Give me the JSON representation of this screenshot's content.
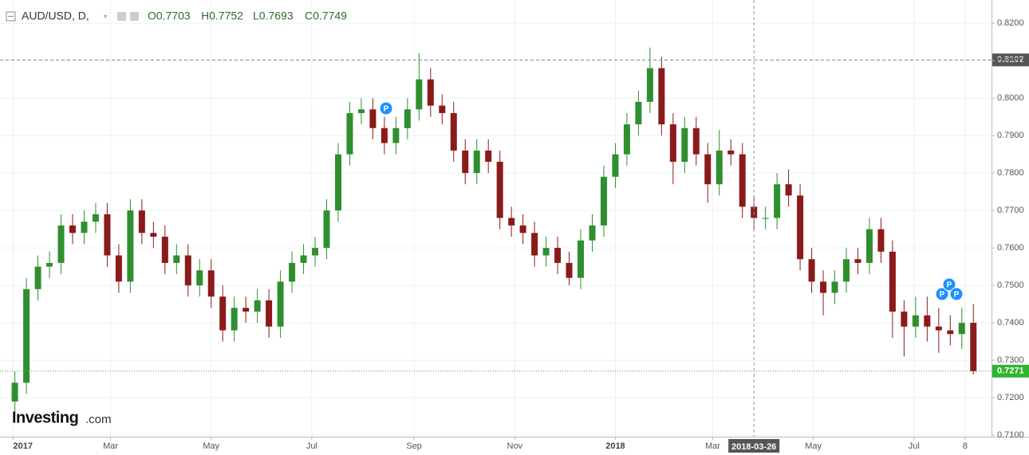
{
  "chart_data": {
    "type": "candlestick",
    "header": {
      "symbol": "AUD/USD, D,",
      "ohlc": [
        "O0.7703",
        "H0.7752",
        "L0.7693",
        "C0.7749"
      ]
    },
    "logo": {
      "brand": "Investing",
      "suffix": ".com"
    },
    "event_markers": [
      "P",
      "P",
      "P",
      "P"
    ],
    "x": [
      "2017-01-02",
      "2017-01-09",
      "2017-01-16",
      "2017-01-23",
      "2017-01-30",
      "2017-02-06",
      "2017-02-13",
      "2017-02-20",
      "2017-02-27",
      "2017-03-06",
      "2017-03-13",
      "2017-03-20",
      "2017-03-27",
      "2017-04-03",
      "2017-04-10",
      "2017-04-17",
      "2017-04-24",
      "2017-05-01",
      "2017-05-08",
      "2017-05-15",
      "2017-05-22",
      "2017-05-29",
      "2017-06-05",
      "2017-06-12",
      "2017-06-19",
      "2017-06-26",
      "2017-07-03",
      "2017-07-10",
      "2017-07-17",
      "2017-07-24",
      "2017-07-31",
      "2017-08-07",
      "2017-08-14",
      "2017-08-21",
      "2017-08-28",
      "2017-09-04",
      "2017-09-11",
      "2017-09-18",
      "2017-09-25",
      "2017-10-02",
      "2017-10-09",
      "2017-10-16",
      "2017-10-23",
      "2017-10-30",
      "2017-11-06",
      "2017-11-13",
      "2017-11-20",
      "2017-11-27",
      "2017-12-04",
      "2017-12-11",
      "2017-12-18",
      "2017-12-25",
      "2018-01-01",
      "2018-01-08",
      "2018-01-15",
      "2018-01-22",
      "2018-01-29",
      "2018-02-05",
      "2018-02-12",
      "2018-02-19",
      "2018-02-26",
      "2018-03-05",
      "2018-03-12",
      "2018-03-19",
      "2018-03-26",
      "2018-04-02",
      "2018-04-09",
      "2018-04-16",
      "2018-04-23",
      "2018-04-30",
      "2018-05-07",
      "2018-05-14",
      "2018-05-21",
      "2018-05-28",
      "2018-06-04",
      "2018-06-11",
      "2018-06-18",
      "2018-06-25",
      "2018-07-02",
      "2018-07-09",
      "2018-07-16",
      "2018-07-23",
      "2018-07-30",
      "2018-08-06"
    ],
    "open": [
      0.719,
      0.724,
      0.749,
      0.755,
      0.756,
      0.766,
      0.764,
      0.767,
      0.769,
      0.758,
      0.751,
      0.77,
      0.764,
      0.763,
      0.756,
      0.758,
      0.75,
      0.754,
      0.747,
      0.738,
      0.744,
      0.743,
      0.746,
      0.739,
      0.751,
      0.756,
      0.758,
      0.76,
      0.77,
      0.785,
      0.796,
      0.797,
      0.792,
      0.788,
      0.792,
      0.797,
      0.805,
      0.798,
      0.796,
      0.786,
      0.78,
      0.786,
      0.783,
      0.768,
      0.766,
      0.764,
      0.758,
      0.76,
      0.756,
      0.752,
      0.762,
      0.766,
      0.779,
      0.785,
      0.793,
      0.799,
      0.808,
      0.793,
      0.783,
      0.792,
      0.785,
      0.777,
      0.786,
      0.785,
      0.771,
      0.768,
      0.768,
      0.777,
      0.774,
      0.757,
      0.751,
      0.748,
      0.751,
      0.757,
      0.756,
      0.765,
      0.759,
      0.743,
      0.739,
      0.742,
      0.739,
      0.738,
      0.737,
      0.74
    ],
    "high": [
      0.727,
      0.752,
      0.758,
      0.759,
      0.769,
      0.769,
      0.77,
      0.772,
      0.772,
      0.761,
      0.773,
      0.773,
      0.767,
      0.766,
      0.761,
      0.761,
      0.757,
      0.757,
      0.75,
      0.747,
      0.747,
      0.749,
      0.749,
      0.754,
      0.759,
      0.761,
      0.763,
      0.773,
      0.788,
      0.799,
      0.8,
      0.8,
      0.795,
      0.795,
      0.8,
      0.812,
      0.808,
      0.801,
      0.799,
      0.789,
      0.789,
      0.789,
      0.786,
      0.771,
      0.769,
      0.767,
      0.763,
      0.763,
      0.759,
      0.765,
      0.769,
      0.782,
      0.788,
      0.796,
      0.802,
      0.8135,
      0.811,
      0.796,
      0.795,
      0.795,
      0.788,
      0.7915,
      0.789,
      0.788,
      0.774,
      0.771,
      0.78,
      0.781,
      0.777,
      0.76,
      0.754,
      0.754,
      0.76,
      0.76,
      0.768,
      0.768,
      0.762,
      0.746,
      0.747,
      0.747,
      0.744,
      0.742,
      0.744,
      0.745
    ],
    "low": [
      0.716,
      0.721,
      0.746,
      0.752,
      0.753,
      0.761,
      0.761,
      0.764,
      0.755,
      0.748,
      0.748,
      0.761,
      0.76,
      0.753,
      0.753,
      0.747,
      0.747,
      0.744,
      0.735,
      0.735,
      0.74,
      0.74,
      0.736,
      0.736,
      0.748,
      0.753,
      0.755,
      0.757,
      0.767,
      0.782,
      0.793,
      0.789,
      0.785,
      0.785,
      0.789,
      0.794,
      0.795,
      0.793,
      0.783,
      0.777,
      0.777,
      0.78,
      0.765,
      0.763,
      0.761,
      0.755,
      0.755,
      0.753,
      0.75,
      0.749,
      0.759,
      0.763,
      0.776,
      0.782,
      0.79,
      0.796,
      0.79,
      0.777,
      0.78,
      0.782,
      0.772,
      0.774,
      0.782,
      0.768,
      0.765,
      0.765,
      0.765,
      0.771,
      0.754,
      0.748,
      0.742,
      0.745,
      0.748,
      0.753,
      0.753,
      0.756,
      0.736,
      0.731,
      0.736,
      0.735,
      0.732,
      0.734,
      0.733,
      0.7262
    ],
    "close": [
      0.724,
      0.749,
      0.755,
      0.756,
      0.766,
      0.764,
      0.767,
      0.769,
      0.758,
      0.751,
      0.77,
      0.764,
      0.763,
      0.756,
      0.758,
      0.75,
      0.754,
      0.747,
      0.738,
      0.744,
      0.743,
      0.746,
      0.739,
      0.751,
      0.756,
      0.758,
      0.76,
      0.77,
      0.785,
      0.796,
      0.797,
      0.792,
      0.788,
      0.792,
      0.797,
      0.805,
      0.798,
      0.796,
      0.786,
      0.78,
      0.786,
      0.783,
      0.768,
      0.766,
      0.764,
      0.758,
      0.76,
      0.756,
      0.752,
      0.762,
      0.766,
      0.779,
      0.785,
      0.793,
      0.799,
      0.808,
      0.793,
      0.783,
      0.792,
      0.785,
      0.777,
      0.786,
      0.785,
      0.771,
      0.768,
      0.768,
      0.777,
      0.774,
      0.757,
      0.751,
      0.748,
      0.751,
      0.757,
      0.756,
      0.765,
      0.759,
      0.743,
      0.739,
      0.742,
      0.739,
      0.738,
      0.737,
      0.74,
      0.7271
    ],
    "up_color": "#2f8f2f",
    "down_color": "#8b1a1a",
    "xlim": [
      "2016-12-24",
      "2018-08-17"
    ],
    "xticks": [
      {
        "value": "2017-01-01",
        "label": "2017"
      },
      {
        "value": "2017-03-01",
        "label": "Mar"
      },
      {
        "value": "2017-05-01",
        "label": "May"
      },
      {
        "value": "2017-07-01",
        "label": "Jul"
      },
      {
        "value": "2017-09-01",
        "label": "Sep"
      },
      {
        "value": "2017-11-01",
        "label": "Nov"
      },
      {
        "value": "2018-01-01",
        "label": "2018"
      },
      {
        "value": "2018-03-01",
        "label": "Mar"
      },
      {
        "value": "2018-05-01",
        "label": "May"
      },
      {
        "value": "2018-07-01",
        "label": "Jul"
      },
      {
        "value": "2018-08-01",
        "label": "8"
      }
    ],
    "ylim": [
      0.7096,
      0.8262
    ],
    "yticks": [
      {
        "value": 0.71,
        "label": "0.7100"
      },
      {
        "value": 0.72,
        "label": "0.7200"
      },
      {
        "value": 0.73,
        "label": "0.7300"
      },
      {
        "value": 0.74,
        "label": "0.7400"
      },
      {
        "value": 0.75,
        "label": "0.7500"
      },
      {
        "value": 0.76,
        "label": "0.7600"
      },
      {
        "value": 0.77,
        "label": "0.7700"
      },
      {
        "value": 0.78,
        "label": "0.7800"
      },
      {
        "value": 0.79,
        "label": "0.7900"
      },
      {
        "value": 0.8,
        "label": "0.8000"
      },
      {
        "value": 0.81,
        "label": "0.8100"
      },
      {
        "value": 0.82,
        "label": "0.8200"
      }
    ],
    "grid": true,
    "hline_price": 0.8102,
    "last_price": 0.7271,
    "crosshair_date": "2018-03-26"
  }
}
